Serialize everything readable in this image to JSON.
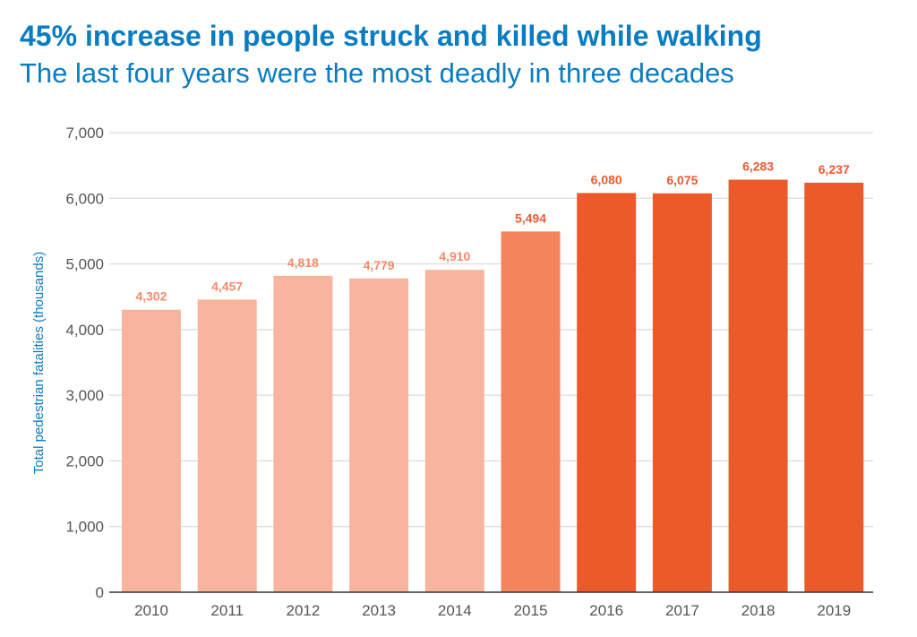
{
  "chart_data": {
    "type": "bar",
    "title": "45% increase in people struck and killed while walking",
    "subtitle": "The last four years were the most deadly in three decades",
    "xlabel": "",
    "ylabel": "Total pedestrian fatalities (thousands)",
    "ylim": [
      0,
      7000
    ],
    "yticks": [
      "0",
      "1,000",
      "2,000",
      "3,000",
      "4,000",
      "5,000",
      "6,000",
      "7,000"
    ],
    "grid": true,
    "categories": [
      "2010",
      "2011",
      "2012",
      "2013",
      "2014",
      "2015",
      "2016",
      "2017",
      "2018",
      "2019"
    ],
    "values": [
      4302,
      4457,
      4818,
      4779,
      4910,
      5494,
      6080,
      6075,
      6283,
      6237
    ],
    "labels": [
      "4,302",
      "4,457",
      "4,818",
      "4,779",
      "4,910",
      "5,494",
      "6,080",
      "6,075",
      "6,283",
      "6,237"
    ],
    "colors": [
      "#f9b49e",
      "#f9b49e",
      "#f9b49e",
      "#f9b49e",
      "#f9b49e",
      "#f4845b",
      "#ec5a2a",
      "#ec5a2a",
      "#ec5a2a",
      "#ec5a2a"
    ],
    "label_colors": [
      "#f48a6a",
      "#f48a6a",
      "#f48a6a",
      "#f48a6a",
      "#f48a6a",
      "#ee5a2e",
      "#ee5a2e",
      "#ee5a2e",
      "#ee5a2e",
      "#ee5a2e"
    ],
    "title_color": "#0a7cc1"
  }
}
